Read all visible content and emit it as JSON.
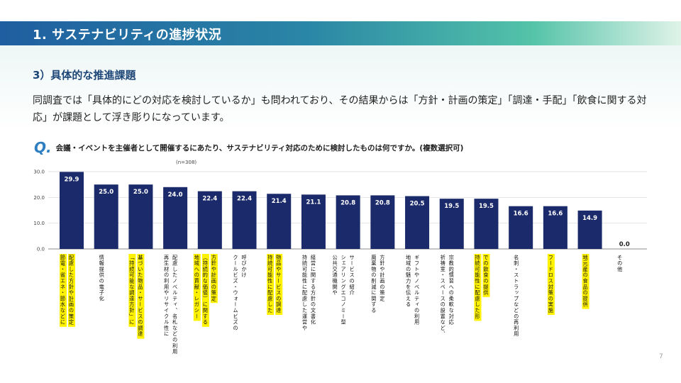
{
  "header": {
    "title": "1. サステナビリティの進捗状況"
  },
  "section": {
    "title": "3）具体的な推進課題"
  },
  "body": {
    "text": "同調査では「具体的にどの対応を検討しているか」も問われており、その結果からは「方針・計画の策定」「調達・手配」「飲食に関する対応」が課題として浮き彫りになっています。"
  },
  "question": {
    "mark": "Q.",
    "text": "会議・イベントを主催者として開催するにあたり、サステナビリティ対応のために検討したものは何ですか。(複数選択可)"
  },
  "note": {
    "n": "(n=308)"
  },
  "page": {
    "number": "7"
  },
  "colors": {
    "bar": "#1b2a6b",
    "highlight": "#fff200",
    "header_start": "#1f5ea0",
    "header_end": "#53c3a8"
  },
  "chart_data": {
    "type": "bar",
    "title": "会議・イベントを主催者として開催するにあたり、サステナビリティ対応のために検討したものは何ですか。(複数選択可)",
    "ylim": [
      0,
      30
    ],
    "yticks": [
      "0.0",
      "10.0",
      "20.0",
      "30.0"
    ],
    "categories": [
      {
        "lines": [
          "節電・省エネ・節水などに",
          "配慮した方針や計画の策定"
        ],
        "highlight": [
          true,
          true
        ]
      },
      {
        "lines": [
          "情報提供の電子化"
        ],
        "highlight": [
          false
        ]
      },
      {
        "lines": [
          "「持続可能な調達方針」に",
          "基づいた物品・サービスの調達"
        ],
        "highlight": [
          true,
          true
        ]
      },
      {
        "lines": [
          "再生材の利用やリサイクル性に",
          "配慮したノベルティ、名札などの利用"
        ],
        "highlight": [
          false,
          false
        ]
      },
      {
        "lines": [
          "地域への貢献・レガシー",
          "（持続的な価値）に関する",
          "方針や計画の策定"
        ],
        "highlight": [
          true,
          true,
          true
        ]
      },
      {
        "lines": [
          "クールビズ・ウォームビズの",
          "呼びかけ"
        ],
        "highlight": [
          false,
          false
        ]
      },
      {
        "lines": [
          "持続可能性に配慮した",
          "物品やサービスの調達"
        ],
        "highlight": [
          true,
          true
        ]
      },
      {
        "lines": [
          "持続可能性に配慮した運営や",
          "経営に関する方針の文書化"
        ],
        "highlight": [
          false,
          false
        ]
      },
      {
        "lines": [
          "公共交通機関や",
          "シェアリングエコノミー型",
          "サービスの紹介"
        ],
        "highlight": [
          false,
          false,
          false
        ]
      },
      {
        "lines": [
          "廃棄物の削減に関する",
          "方針や計画の策定"
        ],
        "highlight": [
          false,
          false
        ]
      },
      {
        "lines": [
          "地域の魅力を伝える",
          "ギフトやノベルティの利用"
        ],
        "highlight": [
          false,
          false
        ]
      },
      {
        "lines": [
          "祈祷室・スペースの設置など、",
          "宗教的慣習への柔軟な対応"
        ],
        "highlight": [
          false,
          false
        ]
      },
      {
        "lines": [
          "持続可能性に配慮した形",
          "での飲食の提供"
        ],
        "highlight": [
          true,
          true
        ]
      },
      {
        "lines": [
          "名刺・ストラップなどの再利用"
        ],
        "highlight": [
          false
        ]
      },
      {
        "lines": [
          "フードロス対策の実施"
        ],
        "highlight": [
          true
        ]
      },
      {
        "lines": [
          "地元産の食品の提供"
        ],
        "highlight": [
          true
        ]
      },
      {
        "lines": [
          "その他"
        ],
        "highlight": [
          false
        ]
      }
    ],
    "values": [
      29.9,
      25.0,
      25.0,
      24.0,
      22.4,
      22.4,
      21.4,
      21.1,
      20.8,
      20.8,
      20.5,
      19.5,
      19.5,
      16.6,
      16.6,
      14.9,
      0.0
    ],
    "value_labels": [
      "29.9",
      "25.0",
      "25.0",
      "24.0",
      "22.4",
      "22.4",
      "21.4",
      "21.1",
      "20.8",
      "20.8",
      "20.5",
      "19.5",
      "19.5",
      "16.6",
      "16.6",
      "14.9",
      "0.0"
    ],
    "xlabel": "",
    "ylabel": "",
    "grid": true
  }
}
